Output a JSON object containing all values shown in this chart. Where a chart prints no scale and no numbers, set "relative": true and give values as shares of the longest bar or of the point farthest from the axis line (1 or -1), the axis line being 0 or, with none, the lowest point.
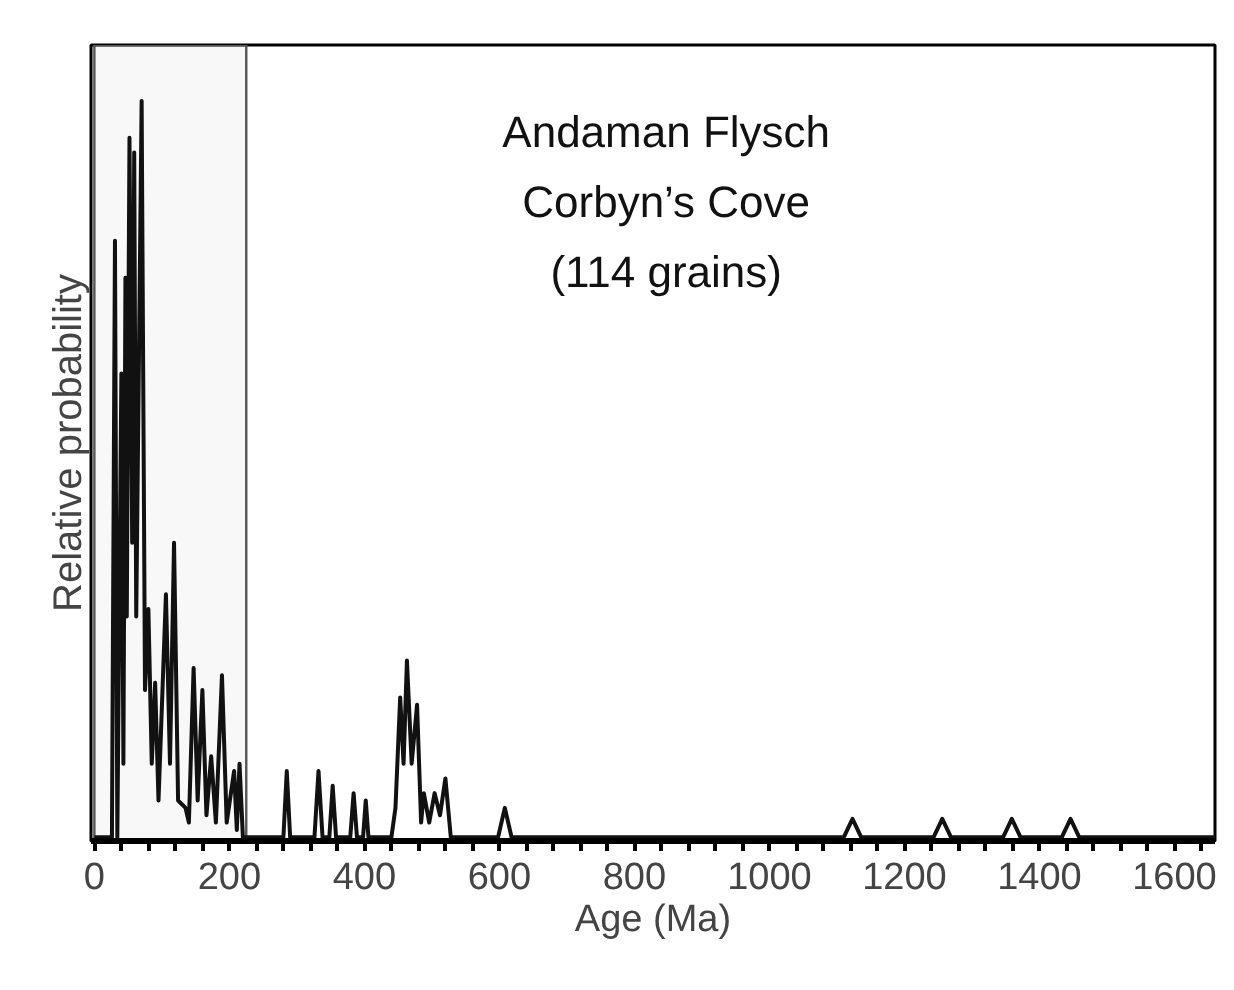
{
  "chart_data": {
    "type": "line",
    "title": "Andaman Flysch\nCorbyn’s Cove\n(114 grains)",
    "xlabel": "Age (Ma)",
    "ylabel": "Relative probability",
    "relative": true,
    "xlim": [
      -5,
      1660
    ],
    "xticks": [
      0,
      {
        "value": 40,
        "label": null
      },
      {
        "value": 80,
        "label": null
      },
      {
        "value": 120,
        "label": null
      },
      {
        "value": 160,
        "label": null
      },
      200,
      {
        "value": 240,
        "label": null
      },
      {
        "value": 280,
        "label": null
      },
      {
        "value": 320,
        "label": null
      },
      {
        "value": 360,
        "label": null
      },
      400,
      {
        "value": 440,
        "label": null
      },
      {
        "value": 480,
        "label": null
      },
      {
        "value": 520,
        "label": null
      },
      {
        "value": 560,
        "label": null
      },
      600,
      {
        "value": 640,
        "label": null
      },
      {
        "value": 680,
        "label": null
      },
      {
        "value": 720,
        "label": null
      },
      {
        "value": 760,
        "label": null
      },
      800,
      {
        "value": 840,
        "label": null
      },
      {
        "value": 880,
        "label": null
      },
      {
        "value": 920,
        "label": null
      },
      {
        "value": 960,
        "label": null
      },
      1000,
      {
        "value": 1040,
        "label": null
      },
      {
        "value": 1080,
        "label": null
      },
      {
        "value": 1120,
        "label": null
      },
      {
        "value": 1160,
        "label": null
      },
      1200,
      {
        "value": 1240,
        "label": null
      },
      {
        "value": 1280,
        "label": null
      },
      {
        "value": 1320,
        "label": null
      },
      {
        "value": 1360,
        "label": null
      },
      1400,
      {
        "value": 1440,
        "label": null
      },
      {
        "value": 1480,
        "label": null
      },
      {
        "value": 1520,
        "label": null
      },
      {
        "value": 1560,
        "label": null
      },
      1600,
      {
        "value": 1640,
        "label": null
      }
    ],
    "series": [
      {
        "color": "#111111",
        "x": [
          0,
          26,
          30.5,
          34,
          40,
          43,
          46,
          48,
          52,
          56,
          59,
          62,
          70,
          75,
          80,
          85,
          90,
          95,
          106,
          112,
          118,
          124,
          135,
          140,
          147,
          153,
          160,
          166,
          173,
          180,
          189,
          196,
          207,
          211,
          215,
          220,
          280,
          285,
          290,
          326,
          332,
          338,
          348,
          353,
          358,
          379,
          384,
          389,
          398,
          402,
          406,
          440,
          446,
          453,
          458,
          463,
          470,
          478,
          484,
          488,
          496,
          504,
          512,
          520,
          528,
          598,
          608,
          618,
          1110,
          1123,
          1136,
          1243,
          1256,
          1269,
          1346,
          1359,
          1372,
          1433,
          1446,
          1459,
          1660
        ],
        "values": [
          0,
          0,
          0.81,
          0,
          0.63,
          0.1,
          0.76,
          0.3,
          0.95,
          0.4,
          0.93,
          0.3,
          1.0,
          0.2,
          0.31,
          0.1,
          0.21,
          0.05,
          0.33,
          0.1,
          0.4,
          0.05,
          0.04,
          0.02,
          0.23,
          0.05,
          0.2,
          0.03,
          0.11,
          0.02,
          0.22,
          0.02,
          0.09,
          0.01,
          0.1,
          0,
          0,
          0.09,
          0,
          0,
          0.09,
          0,
          0,
          0.07,
          0,
          0,
          0.06,
          0,
          0,
          0.05,
          0,
          0,
          0.04,
          0.19,
          0.1,
          0.24,
          0.1,
          0.18,
          0.02,
          0.06,
          0.02,
          0.06,
          0.03,
          0.08,
          0,
          0,
          0.04,
          0,
          0,
          0.025,
          0,
          0,
          0.025,
          0,
          0,
          0.025,
          0,
          0,
          0.025,
          0,
          0
        ]
      }
    ],
    "bands": [
      {
        "axis": "x",
        "from": 0,
        "to": 225,
        "label": null,
        "color": "#555555"
      }
    ],
    "grid": false
  }
}
